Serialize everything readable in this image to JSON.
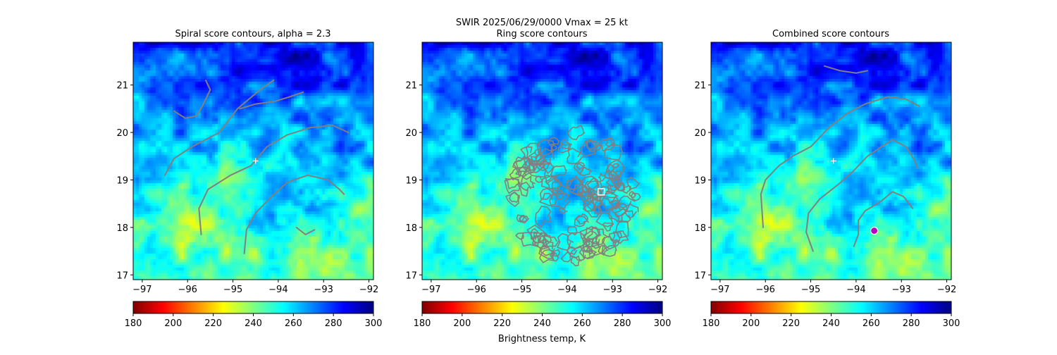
{
  "suptitle": "SWIR  2025/06/29/0000    Vmax = 25 kt",
  "colorbar_label": "Brightness temp, K",
  "panels": [
    {
      "id": "spiral",
      "title": "Spiral score contours, alpha =  2.3"
    },
    {
      "id": "ring",
      "title": "Ring score contours"
    },
    {
      "id": "combined",
      "title": "Combined score contours"
    }
  ],
  "chart_data": {
    "type": "heatmap",
    "xlim": [
      -97.2,
      -91.9
    ],
    "ylim": [
      16.9,
      21.9
    ],
    "x_ticks": [
      -97,
      -96,
      -95,
      -94,
      -93,
      -92
    ],
    "x_tick_labels": [
      "−97",
      "−96",
      "−95",
      "−94",
      "−93",
      "−92"
    ],
    "y_ticks": [
      17,
      18,
      19,
      20,
      21
    ],
    "y_tick_labels": [
      "17",
      "18",
      "19",
      "20",
      "21"
    ],
    "colorbar": {
      "range": [
        180,
        300
      ],
      "ticks": [
        180,
        200,
        220,
        240,
        260,
        280,
        300
      ],
      "tick_labels": [
        "180",
        "200",
        "220",
        "240",
        "260",
        "280",
        "300"
      ],
      "colormap": "jet_r",
      "stops": [
        "#800000",
        "#ff0000",
        "#ff8000",
        "#ffff00",
        "#80ff80",
        "#00ffff",
        "#0080ff",
        "#0000ff",
        "#000080"
      ]
    },
    "contour_color": "#808080",
    "spiral_center": {
      "lon": -94.5,
      "lat": 19.4,
      "marker": "plus",
      "color": "#ffffff"
    },
    "ring_center": {
      "lon": -93.25,
      "lat": 18.75,
      "marker": "square",
      "color": "#ffffff"
    },
    "combined_center": {
      "lon": -93.6,
      "lat": 17.93,
      "marker": "circle",
      "color": "#c000c0"
    },
    "ring_region": {
      "lon_center": -93.9,
      "lat_center": 18.65,
      "lon_radius": 1.55,
      "lat_radius": 1.45
    },
    "spiral_contours": [
      [
        [
          -96.5,
          19.1
        ],
        [
          -96.3,
          19.45
        ],
        [
          -95.9,
          19.7
        ],
        [
          -95.3,
          20.0
        ],
        [
          -94.9,
          20.5
        ],
        [
          -94.4,
          20.9
        ],
        [
          -94.1,
          21.1
        ]
      ],
      [
        [
          -95.7,
          17.85
        ],
        [
          -95.75,
          18.4
        ],
        [
          -95.55,
          18.8
        ],
        [
          -95.05,
          19.1
        ],
        [
          -94.6,
          19.3
        ],
        [
          -94.25,
          19.7
        ],
        [
          -93.8,
          19.95
        ],
        [
          -93.3,
          20.1
        ],
        [
          -92.8,
          20.15
        ],
        [
          -92.45,
          20.0
        ]
      ],
      [
        [
          -94.75,
          17.45
        ],
        [
          -94.7,
          17.95
        ],
        [
          -94.5,
          18.3
        ],
        [
          -94.2,
          18.6
        ],
        [
          -93.8,
          18.95
        ],
        [
          -93.35,
          19.1
        ],
        [
          -92.9,
          19.0
        ],
        [
          -92.65,
          18.8
        ],
        [
          -92.55,
          18.7
        ]
      ],
      [
        [
          -96.3,
          20.45
        ],
        [
          -96.05,
          20.3
        ],
        [
          -95.8,
          20.35
        ],
        [
          -95.65,
          20.6
        ],
        [
          -95.5,
          20.9
        ],
        [
          -95.6,
          21.1
        ]
      ],
      [
        [
          -94.85,
          20.5
        ],
        [
          -94.5,
          20.6
        ],
        [
          -94.1,
          20.65
        ],
        [
          -93.75,
          20.75
        ],
        [
          -93.45,
          20.85
        ]
      ],
      [
        [
          -93.6,
          18.0
        ],
        [
          -93.4,
          17.85
        ],
        [
          -93.2,
          17.95
        ]
      ]
    ],
    "combined_contours": [
      [
        [
          -96.05,
          18.0
        ],
        [
          -96.1,
          18.7
        ],
        [
          -96.0,
          19.0
        ],
        [
          -95.7,
          19.3
        ],
        [
          -95.4,
          19.5
        ],
        [
          -95.0,
          19.7
        ],
        [
          -94.6,
          20.1
        ],
        [
          -94.2,
          20.4
        ],
        [
          -93.8,
          20.6
        ],
        [
          -93.3,
          20.75
        ],
        [
          -92.9,
          20.7
        ],
        [
          -92.6,
          20.55
        ]
      ],
      [
        [
          -94.95,
          17.5
        ],
        [
          -95.1,
          17.9
        ],
        [
          -95.05,
          18.3
        ],
        [
          -94.8,
          18.6
        ],
        [
          -94.4,
          18.9
        ],
        [
          -94.1,
          19.15
        ],
        [
          -93.75,
          19.5
        ],
        [
          -93.2,
          19.85
        ],
        [
          -92.9,
          19.7
        ],
        [
          -92.7,
          19.4
        ],
        [
          -92.65,
          19.25
        ]
      ],
      [
        [
          -94.05,
          17.6
        ],
        [
          -93.95,
          17.85
        ],
        [
          -93.95,
          18.15
        ],
        [
          -93.8,
          18.35
        ],
        [
          -93.45,
          18.55
        ],
        [
          -93.2,
          18.75
        ],
        [
          -92.95,
          18.65
        ],
        [
          -92.75,
          18.4
        ]
      ],
      [
        [
          -94.7,
          21.4
        ],
        [
          -94.35,
          21.3
        ],
        [
          -94.0,
          21.25
        ],
        [
          -93.75,
          21.3
        ]
      ]
    ]
  }
}
